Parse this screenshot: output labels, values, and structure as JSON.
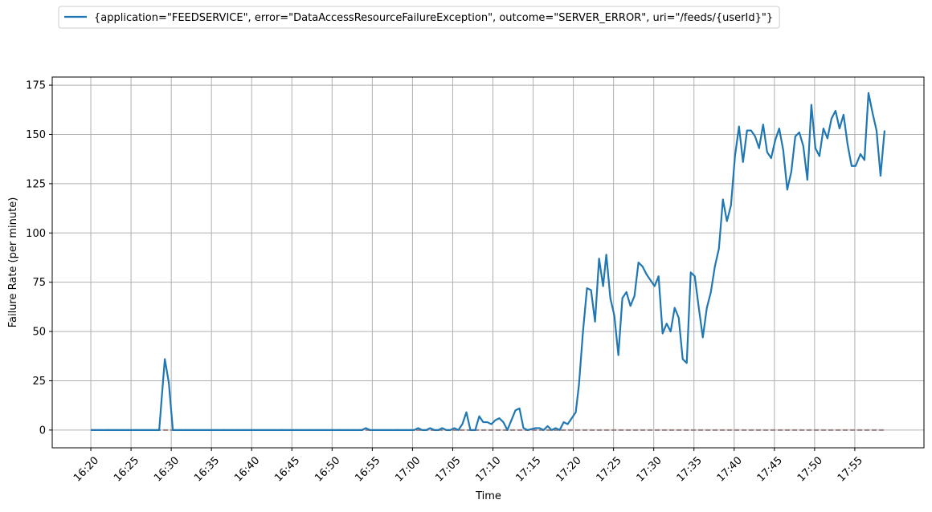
{
  "chart_data": {
    "type": "line",
    "xlabel": "Time",
    "ylabel": "Failure Rate (per minute)",
    "x": [
      0,
      8.5,
      9.2,
      9.7,
      10.2,
      33.7,
      34.2,
      34.7,
      40.2,
      40.7,
      41.2,
      41.7,
      42.2,
      42.7,
      43.2,
      43.7,
      44.2,
      44.7,
      45.2,
      45.7,
      46.2,
      46.7,
      47.2,
      47.8,
      48.3,
      48.8,
      49.3,
      49.8,
      50.3,
      50.8,
      51.3,
      51.8,
      52.8,
      53.3,
      53.8,
      54.3,
      55.3,
      55.8,
      56.3,
      56.8,
      57.3,
      57.8,
      58.3,
      58.8,
      59.3,
      59.8,
      60.3,
      60.7,
      61.2,
      61.7,
      62.2,
      62.7,
      63.2,
      63.7,
      64.1,
      64.6,
      65.1,
      65.6,
      66.1,
      66.6,
      67.1,
      67.6,
      68.1,
      68.6,
      69.1,
      69.6,
      70.1,
      70.6,
      71.1,
      71.6,
      72.1,
      72.6,
      73.1,
      73.6,
      74.1,
      74.6,
      75.1,
      75.6,
      76.1,
      76.6,
      77.1,
      77.6,
      78.1,
      78.6,
      79.1,
      79.6,
      80.1,
      80.6,
      81.1,
      81.6,
      82.1,
      82.6,
      83.1,
      83.6,
      84.1,
      84.6,
      85.1,
      85.6,
      86.1,
      86.6,
      87.1,
      87.6,
      88.1,
      88.6,
      89.1,
      89.6,
      90.1,
      90.6,
      91.1,
      91.6,
      92.1,
      92.6,
      93.1,
      93.6,
      94.1,
      94.6,
      95.1,
      95.7,
      96.2,
      96.7,
      97.2,
      97.7,
      98.2,
      98.7
    ],
    "series": [
      {
        "name": "{application=\"FEEDSERVICE\", error=\"DataAccessResourceFailureException\", outcome=\"SERVER_ERROR\", uri=\"/feeds/{userId}\"}",
        "color": "#1f77b4",
        "values": [
          0,
          0,
          36,
          24,
          0,
          0,
          1,
          0,
          0,
          1,
          0,
          0,
          1,
          0,
          0,
          1,
          0,
          0,
          1,
          0,
          3,
          9,
          0,
          0,
          7,
          4,
          4,
          3,
          5,
          6,
          4,
          0,
          10,
          11,
          1,
          0,
          1,
          1,
          0,
          2,
          0,
          1,
          0,
          4,
          3,
          6,
          9,
          23,
          50,
          72,
          71,
          55,
          87,
          73,
          89,
          67,
          58,
          38,
          67,
          70,
          63,
          68,
          85,
          83,
          79,
          76,
          73,
          78,
          49,
          54,
          50,
          62,
          57,
          36,
          34,
          80,
          78,
          62,
          47,
          62,
          70,
          83,
          92,
          117,
          106,
          114,
          139,
          154,
          136,
          152,
          152,
          149,
          143,
          155,
          141,
          138,
          147,
          153,
          142,
          122,
          131,
          149,
          151,
          144,
          127,
          165,
          143,
          139,
          153,
          148,
          158,
          162,
          153,
          160,
          145,
          134,
          134,
          140,
          137,
          171,
          161,
          152,
          129,
          152
        ]
      }
    ],
    "hlines": [
      {
        "value": 0,
        "xmin": 0,
        "xmax": 98.7,
        "color": "#9c8080",
        "style": "dashed"
      }
    ],
    "xlim": [
      -4.8,
      103.6
    ],
    "ylim": [
      -9,
      179.1
    ],
    "xticks": [
      {
        "value": 0,
        "label": "16:20"
      },
      {
        "value": 5,
        "label": "16:25"
      },
      {
        "value": 10,
        "label": "16:30"
      },
      {
        "value": 15,
        "label": "16:35"
      },
      {
        "value": 20,
        "label": "16:40"
      },
      {
        "value": 25,
        "label": "16:45"
      },
      {
        "value": 30,
        "label": "16:50"
      },
      {
        "value": 35,
        "label": "16:55"
      },
      {
        "value": 40,
        "label": "17:00"
      },
      {
        "value": 45,
        "label": "17:05"
      },
      {
        "value": 50,
        "label": "17:10"
      },
      {
        "value": 55,
        "label": "17:15"
      },
      {
        "value": 60,
        "label": "17:20"
      },
      {
        "value": 65,
        "label": "17:25"
      },
      {
        "value": 70,
        "label": "17:30"
      },
      {
        "value": 75,
        "label": "17:35"
      },
      {
        "value": 80,
        "label": "17:40"
      },
      {
        "value": 85,
        "label": "17:45"
      },
      {
        "value": 90,
        "label": "17:50"
      },
      {
        "value": 95,
        "label": "17:55"
      }
    ],
    "yticks": [
      0,
      25,
      50,
      75,
      100,
      125,
      150,
      175
    ],
    "grid": true,
    "legend": "upper left"
  }
}
